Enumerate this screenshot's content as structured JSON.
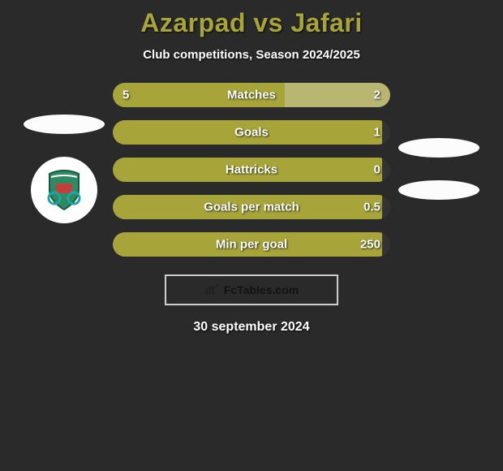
{
  "title": "Azarpad vs Jafari",
  "subtitle": "Club competitions, Season 2024/2025",
  "date": "30 september 2024",
  "footer_label": "FcTables.com",
  "colors": {
    "accent_green": "#a7a53a",
    "bar_left": "#a7a53a",
    "bar_right_matches": "#b8b671",
    "bar_right_default": "#333333",
    "background": "#2a2a2a",
    "ellipse_bg": "#fcfcfc",
    "border_box": "#cfcfcf"
  },
  "bars": [
    {
      "label": "Matches",
      "left_val": "5",
      "right_val": "2",
      "left_pct": 62,
      "left_color": "#a7a53a",
      "right_color": "#b8b671"
    },
    {
      "label": "Goals",
      "left_val": "",
      "right_val": "1",
      "left_pct": 97,
      "left_color": "#a7a53a",
      "right_color": "#333333"
    },
    {
      "label": "Hattricks",
      "left_val": "",
      "right_val": "0",
      "left_pct": 97,
      "left_color": "#a7a53a",
      "right_color": "#333333"
    },
    {
      "label": "Goals per match",
      "left_val": "",
      "right_val": "0.5",
      "left_pct": 97,
      "left_color": "#a7a53a",
      "right_color": "#333333"
    },
    {
      "label": "Min per goal",
      "left_val": "",
      "right_val": "250",
      "left_pct": 97,
      "left_color": "#a7a53a",
      "right_color": "#333333"
    }
  ]
}
